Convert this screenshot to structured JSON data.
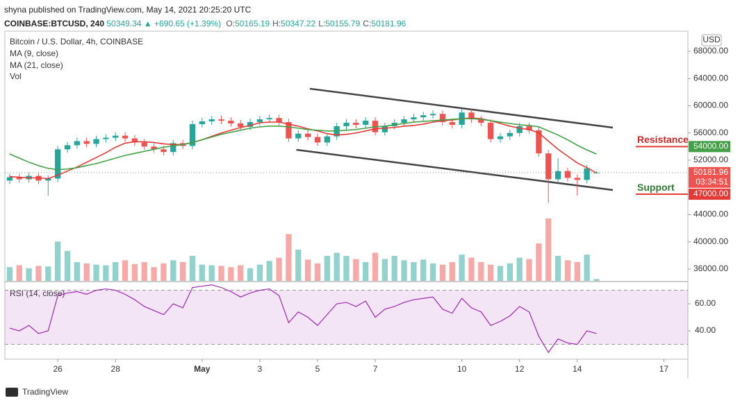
{
  "header": {
    "byline": "shyna published on TradingView.com, May 14, 2021 20:25:20 UTC",
    "symbol": "COINBASE:BTCUSD, 240",
    "last": "50349.34",
    "change": "▲ +690.65 (+1.39%)",
    "ohlc": [
      {
        "label": "O:",
        "value": "50165.19"
      },
      {
        "label": "H:",
        "value": "50347.22"
      },
      {
        "label": "L:",
        "value": "50155.79"
      },
      {
        "label": "C:",
        "value": "50181.96"
      }
    ]
  },
  "chart_data": {
    "type": "candlestick",
    "title": "Bitcoin / U.S. Dollar, 4h, COINBASE",
    "currency": "USD",
    "xlim": [
      -0.5,
      70.5
    ],
    "xticks": [
      {
        "value": 5,
        "label": "26"
      },
      {
        "value": 11,
        "label": "28"
      },
      {
        "value": 20,
        "label": "May"
      },
      {
        "value": 26,
        "label": "3"
      },
      {
        "value": 32,
        "label": "5"
      },
      {
        "value": 38,
        "label": "7"
      },
      {
        "value": 47,
        "label": "10"
      },
      {
        "value": 53,
        "label": "12"
      },
      {
        "value": 59,
        "label": "14"
      },
      {
        "value": 68,
        "label": "17"
      }
    ],
    "ylim": [
      34270,
      70950
    ],
    "yticks": [
      {
        "value": 36000,
        "label": "36000.00"
      },
      {
        "value": 40000,
        "label": "40000.00"
      },
      {
        "value": 44000,
        "label": "44000.00"
      },
      {
        "value": 52000,
        "label": "52000.00"
      },
      {
        "value": 56000,
        "label": "56000.00"
      },
      {
        "value": 60000,
        "label": "60000.00"
      },
      {
        "value": 64000,
        "label": "64000.00"
      },
      {
        "value": 68000,
        "label": "68000.00"
      }
    ],
    "up_color": "#26a69a",
    "down_color": "#ef5350",
    "open": [
      49000,
      49500,
      49200,
      49700,
      49000,
      49300,
      53600,
      54200,
      54800,
      54400,
      55100,
      55300,
      55600,
      55200,
      54600,
      54000,
      53600,
      53200,
      54500,
      54100,
      57300,
      57700,
      58000,
      57800,
      57400,
      56900,
      57600,
      58000,
      58200,
      57600,
      55200,
      55900,
      55400,
      54600,
      55500,
      57000,
      57500,
      57200,
      57800,
      56100,
      57000,
      57500,
      58000,
      58300,
      58600,
      58800,
      57600,
      57200,
      59000,
      58000,
      57500,
      55100,
      55500,
      56000,
      57000,
      56400,
      53000,
      49200,
      50400,
      49400,
      49100,
      50165.19
    ],
    "high": [
      50000,
      50000,
      50200,
      50200,
      49800,
      54100,
      54700,
      55300,
      55300,
      55600,
      55800,
      56100,
      56100,
      55700,
      55100,
      54500,
      54100,
      55000,
      55000,
      57800,
      58200,
      58500,
      58500,
      58300,
      57900,
      58100,
      58500,
      58700,
      58700,
      58100,
      56400,
      56400,
      55900,
      56000,
      57500,
      58000,
      58000,
      58300,
      58300,
      57500,
      58000,
      58500,
      58800,
      59100,
      59300,
      59300,
      58100,
      59500,
      59500,
      58500,
      58000,
      56000,
      56500,
      57500,
      57500,
      56900,
      53500,
      52300,
      50900,
      49900,
      51300,
      50347.22
    ],
    "low": [
      48500,
      48700,
      48700,
      48500,
      46800,
      48800,
      53100,
      53700,
      53900,
      53900,
      54600,
      54800,
      54700,
      54100,
      53500,
      53100,
      52700,
      52700,
      53600,
      53600,
      56800,
      57200,
      57300,
      56900,
      56400,
      56400,
      57100,
      57500,
      57100,
      54700,
      54700,
      54900,
      54100,
      54100,
      55000,
      56500,
      56700,
      56700,
      55600,
      55600,
      56500,
      57000,
      57500,
      57800,
      58100,
      57100,
      56700,
      56700,
      57500,
      57000,
      54600,
      54600,
      55000,
      55500,
      55900,
      52500,
      45700,
      48700,
      48900,
      46800,
      48600,
      50155.79
    ],
    "close": [
      49500,
      49200,
      49700,
      49000,
      49300,
      53600,
      54200,
      54800,
      54400,
      55100,
      55300,
      55600,
      55200,
      54600,
      54000,
      53600,
      53200,
      54500,
      54100,
      57300,
      57700,
      58000,
      57800,
      57400,
      56900,
      57600,
      58000,
      58200,
      57600,
      55200,
      55900,
      55400,
      54600,
      55500,
      57000,
      57500,
      57200,
      57800,
      56100,
      57000,
      57500,
      58000,
      58300,
      58600,
      58800,
      57600,
      57200,
      59000,
      58000,
      57500,
      55100,
      55500,
      56000,
      57000,
      56400,
      53000,
      49200,
      50400,
      49400,
      49100,
      50800,
      50181.96
    ],
    "ma": [
      {
        "name": "MA (9, close)",
        "color": "#e53935",
        "values": [
          49600,
          49500,
          49400,
          49400,
          49300,
          49800,
          50400,
          51000,
          51700,
          52400,
          53100,
          53900,
          54500,
          54700,
          54700,
          54600,
          54400,
          54300,
          54300,
          54600,
          55000,
          55500,
          56000,
          56400,
          56800,
          57100,
          57500,
          57600,
          57600,
          57300,
          57000,
          56600,
          56300,
          55900,
          55700,
          55800,
          56000,
          56300,
          56600,
          56700,
          56800,
          57000,
          57100,
          57300,
          57600,
          57800,
          57900,
          58100,
          58200,
          58100,
          57800,
          57400,
          57000,
          56700,
          56500,
          56000,
          54800,
          53600,
          52600,
          51600,
          50900,
          50100
        ]
      },
      {
        "name": "MA (21, close)",
        "color": "#43a047",
        "values": [
          52900,
          52300,
          51700,
          51200,
          50800,
          50600,
          50700,
          50900,
          51200,
          51500,
          51900,
          52300,
          52700,
          53000,
          53300,
          53600,
          53900,
          54100,
          54300,
          54600,
          55000,
          55400,
          55800,
          56100,
          56400,
          56700,
          56900,
          57000,
          57000,
          56900,
          56700,
          56500,
          56400,
          56300,
          56300,
          56400,
          56500,
          56700,
          56900,
          57000,
          57200,
          57400,
          57600,
          57700,
          57800,
          57900,
          58000,
          58100,
          58100,
          58000,
          57800,
          57600,
          57400,
          57200,
          57100,
          56900,
          56300,
          55700,
          55000,
          54200,
          53500,
          52900
        ]
      }
    ],
    "volume": {
      "name": "Vol",
      "ylim": [
        0,
        400
      ],
      "values": [
        22,
        25,
        20,
        24,
        23,
        63,
        48,
        30,
        28,
        26,
        25,
        30,
        33,
        27,
        30,
        22,
        28,
        33,
        30,
        40,
        26,
        25,
        24,
        22,
        25,
        20,
        26,
        32,
        37,
        75,
        50,
        34,
        28,
        40,
        45,
        40,
        35,
        30,
        45,
        35,
        40,
        33,
        30,
        34,
        28,
        26,
        30,
        42,
        37,
        30,
        26,
        24,
        28,
        37,
        35,
        60,
        100,
        40,
        33,
        30,
        42,
        3
      ]
    },
    "trendline_color": "#424242",
    "trendlines": [
      {
        "x": [
          31.2,
          62.7
        ],
        "y": [
          62500,
          56790
        ]
      },
      {
        "x": [
          29.8,
          62.7
        ],
        "y": [
          53530,
          47620
        ]
      }
    ],
    "level_line_color": "#e53935",
    "annotations": [
      {
        "text": "Resistance",
        "text_color": "#c62828",
        "value": 54000,
        "label": "54000.00",
        "box_color": "#43a047"
      },
      {
        "text": "Support",
        "text_color": "#2e7d32",
        "value": 47000,
        "label": "47000.00",
        "box_color": "#e53935"
      }
    ],
    "last_price": {
      "value": 50181.96,
      "label": "50181.96",
      "countdown": "03:34:51",
      "color": "#ef5350"
    },
    "rsi": {
      "name": "RSI (14, close)",
      "color": "#9c27b0",
      "ylim": [
        19,
        75.4
      ],
      "bands": [
        30,
        70
      ],
      "yticks": [
        {
          "value": 40,
          "label": "40.00"
        },
        {
          "value": 60,
          "label": "60.00"
        }
      ],
      "values": [
        42,
        40,
        44,
        38,
        40,
        66,
        68,
        69,
        67,
        70,
        71,
        70,
        67,
        63,
        58,
        55,
        52,
        60,
        57,
        72,
        73,
        74,
        72,
        69,
        65,
        68,
        70,
        71,
        66,
        46,
        54,
        50,
        44,
        52,
        60,
        61,
        58,
        62,
        50,
        56,
        58,
        61,
        63,
        64,
        65,
        56,
        53,
        64,
        57,
        54,
        44,
        47,
        51,
        58,
        54,
        36,
        24,
        34,
        31,
        30,
        40,
        38
      ]
    }
  },
  "footer": {
    "brand": "TradingView"
  }
}
